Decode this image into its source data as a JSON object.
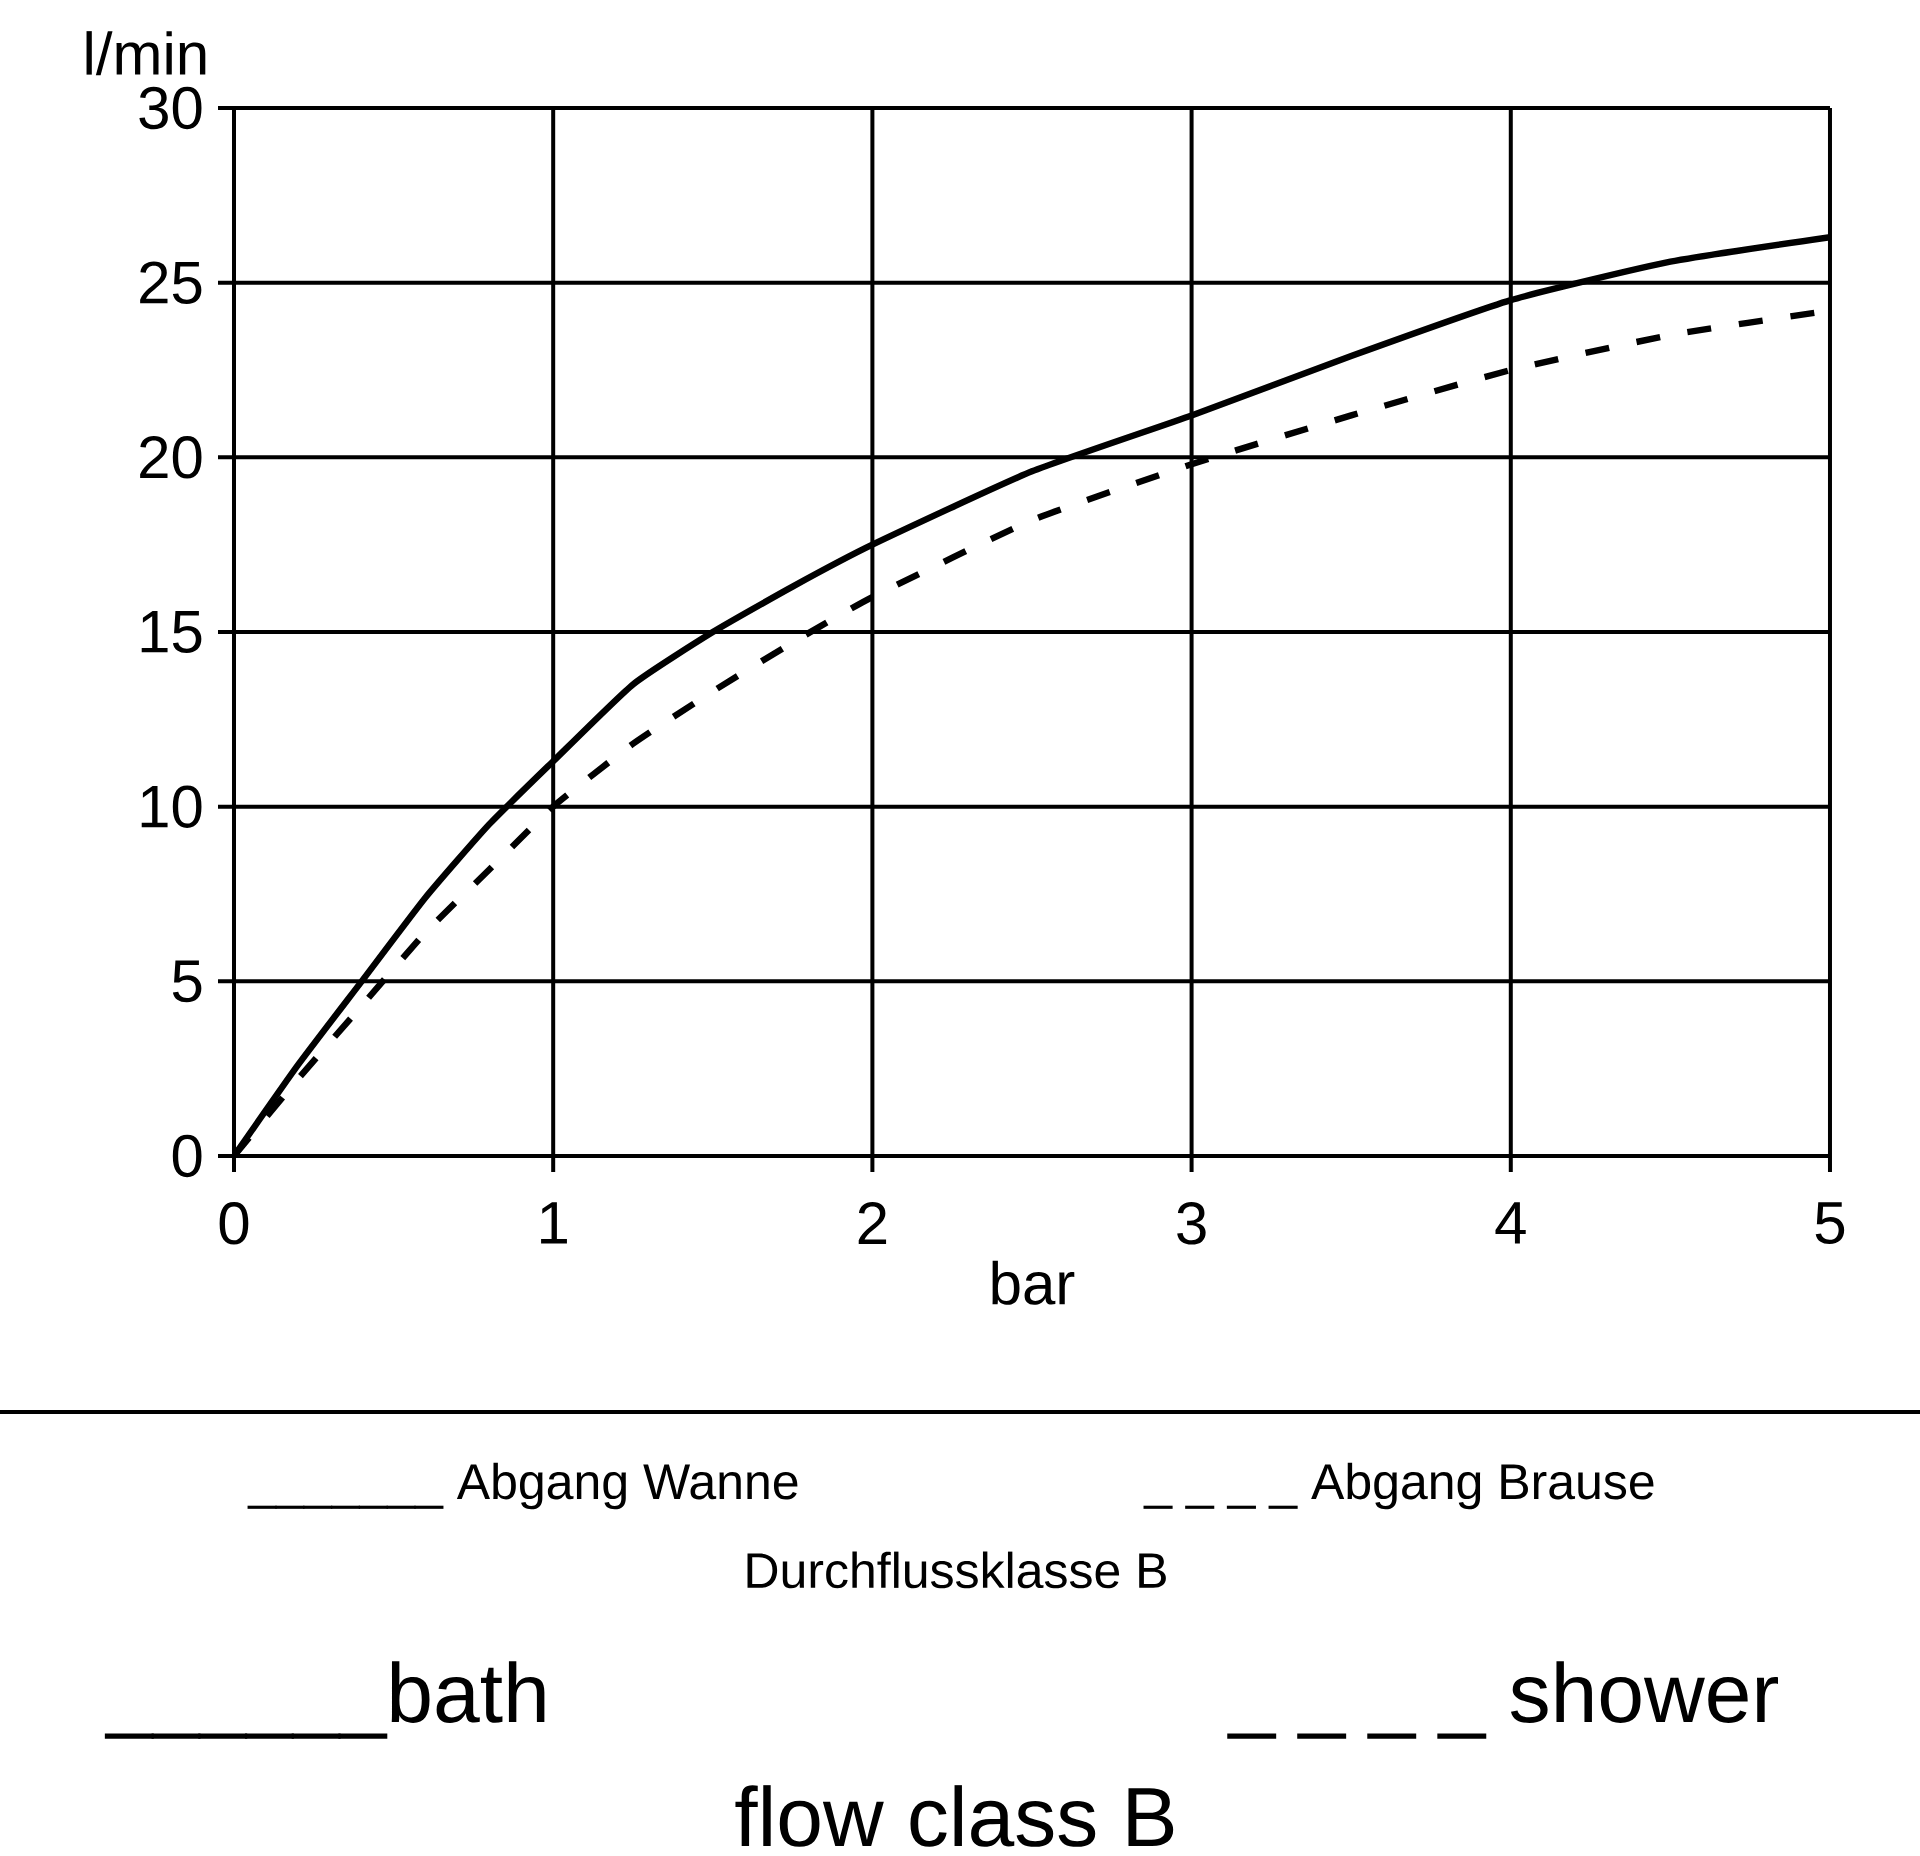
{
  "chart_data": {
    "type": "line",
    "xlabel": "bar",
    "ylabel": "l/min",
    "xlim": [
      0,
      5
    ],
    "ylim": [
      0,
      30
    ],
    "xticks": [
      0,
      1,
      2,
      3,
      4,
      5
    ],
    "yticks": [
      0,
      5,
      10,
      15,
      20,
      25,
      30
    ],
    "grid": true,
    "series": [
      {
        "color": "#000000",
        "line_style": "solid",
        "x": [
          0,
          0.2,
          0.4,
          0.6,
          0.8,
          1,
          1.25,
          1.5,
          1.75,
          2,
          2.5,
          3,
          3.5,
          4,
          4.5,
          5
        ],
        "values": [
          0,
          2.6,
          5,
          7.4,
          9.5,
          11.3,
          13.5,
          15,
          16.3,
          17.5,
          19.6,
          21.2,
          22.9,
          24.5,
          25.6,
          26.3
        ]
      },
      {
        "color": "#000000",
        "line_style": "dashed",
        "x": [
          0,
          0.2,
          0.4,
          0.6,
          0.8,
          1,
          1.25,
          1.5,
          1.75,
          2,
          2.5,
          3,
          3.5,
          4,
          4.5,
          5
        ],
        "values": [
          0,
          2.2,
          4.3,
          6.4,
          8.2,
          10,
          11.8,
          13.3,
          14.7,
          16,
          18.2,
          19.8,
          21.2,
          22.5,
          23.5,
          24.2
        ]
      }
    ],
    "annotations": [
      "_______ Abgang Wanne",
      "_ _ _ _ Abgang Brause",
      "Durchflussklasse B",
      "______bath",
      "_ _ _ _ shower",
      "flow class B"
    ]
  }
}
